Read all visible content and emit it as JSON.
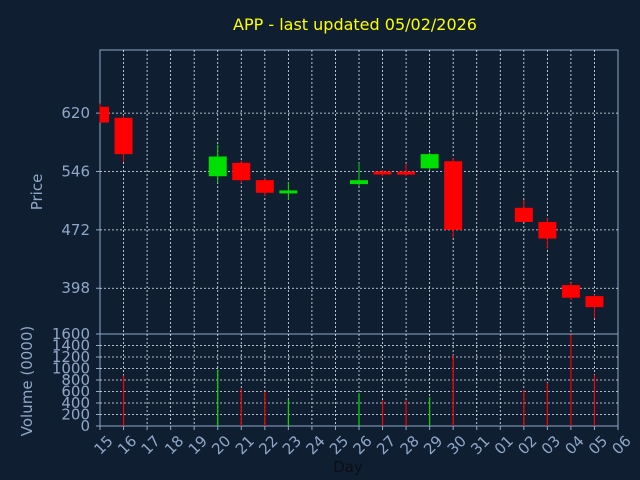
{
  "chart_data": {
    "type": "candlestick",
    "title": "APP - last updated 05/02/2026",
    "xlabel": "Day",
    "price_ylabel": "Price",
    "volume_ylabel": "Volume (0000)",
    "price_yticks": [
      398,
      472,
      546,
      620
    ],
    "price_ylim": [
      340,
      700
    ],
    "volume_yticks": [
      0,
      200,
      400,
      600,
      800,
      1000,
      1200,
      1400,
      1600
    ],
    "volume_ylim": [
      0,
      1600
    ],
    "x_ticks": [
      "15",
      "16",
      "17",
      "18",
      "19",
      "20",
      "21",
      "22",
      "23",
      "24",
      "25",
      "26",
      "27",
      "28",
      "29",
      "30",
      "31",
      "01",
      "02",
      "03",
      "04",
      "05",
      "06"
    ],
    "grid": true,
    "colors": {
      "up": "#00e000",
      "down": "#ff0000",
      "background": "#0f1e30",
      "title": "#ffff00",
      "axis": "#8fa8c8"
    },
    "candles": [
      {
        "day": "15",
        "open": 628,
        "high": 632,
        "low": 608,
        "close": 608
      },
      {
        "day": "16",
        "open": 614,
        "high": 617,
        "low": 558,
        "close": 568
      },
      {
        "day": "20",
        "open": 540,
        "high": 580,
        "low": 532,
        "close": 565
      },
      {
        "day": "21",
        "open": 557,
        "high": 560,
        "low": 531,
        "close": 535
      },
      {
        "day": "22",
        "open": 535,
        "high": 538,
        "low": 515,
        "close": 519
      },
      {
        "day": "23",
        "open": 520,
        "high": 533,
        "low": 510,
        "close": 522
      },
      {
        "day": "26",
        "open": 530,
        "high": 557,
        "low": 528,
        "close": 535
      },
      {
        "day": "27",
        "open": 546,
        "high": 548,
        "low": 540,
        "close": 543
      },
      {
        "day": "28",
        "open": 546,
        "high": 556,
        "low": 540,
        "close": 542
      },
      {
        "day": "29",
        "open": 550,
        "high": 570,
        "low": 548,
        "close": 568
      },
      {
        "day": "30",
        "open": 559,
        "high": 563,
        "low": 462,
        "close": 472
      },
      {
        "day": "02",
        "open": 500,
        "high": 510,
        "low": 482,
        "close": 482
      },
      {
        "day": "03",
        "open": 482,
        "high": 487,
        "low": 448,
        "close": 461
      },
      {
        "day": "04",
        "open": 402,
        "high": 405,
        "low": 383,
        "close": 386
      },
      {
        "day": "05",
        "open": 388,
        "high": 390,
        "low": 360,
        "close": 374
      }
    ],
    "volume": [
      {
        "day": "15",
        "value": 0
      },
      {
        "day": "16",
        "value": 880
      },
      {
        "day": "20",
        "value": 980
      },
      {
        "day": "21",
        "value": 650
      },
      {
        "day": "22",
        "value": 600
      },
      {
        "day": "23",
        "value": 460
      },
      {
        "day": "26",
        "value": 570
      },
      {
        "day": "27",
        "value": 450
      },
      {
        "day": "28",
        "value": 450
      },
      {
        "day": "29",
        "value": 500
      },
      {
        "day": "30",
        "value": 1230
      },
      {
        "day": "02",
        "value": 630
      },
      {
        "day": "03",
        "value": 750
      },
      {
        "day": "04",
        "value": 1590
      },
      {
        "day": "05",
        "value": 890
      }
    ]
  }
}
